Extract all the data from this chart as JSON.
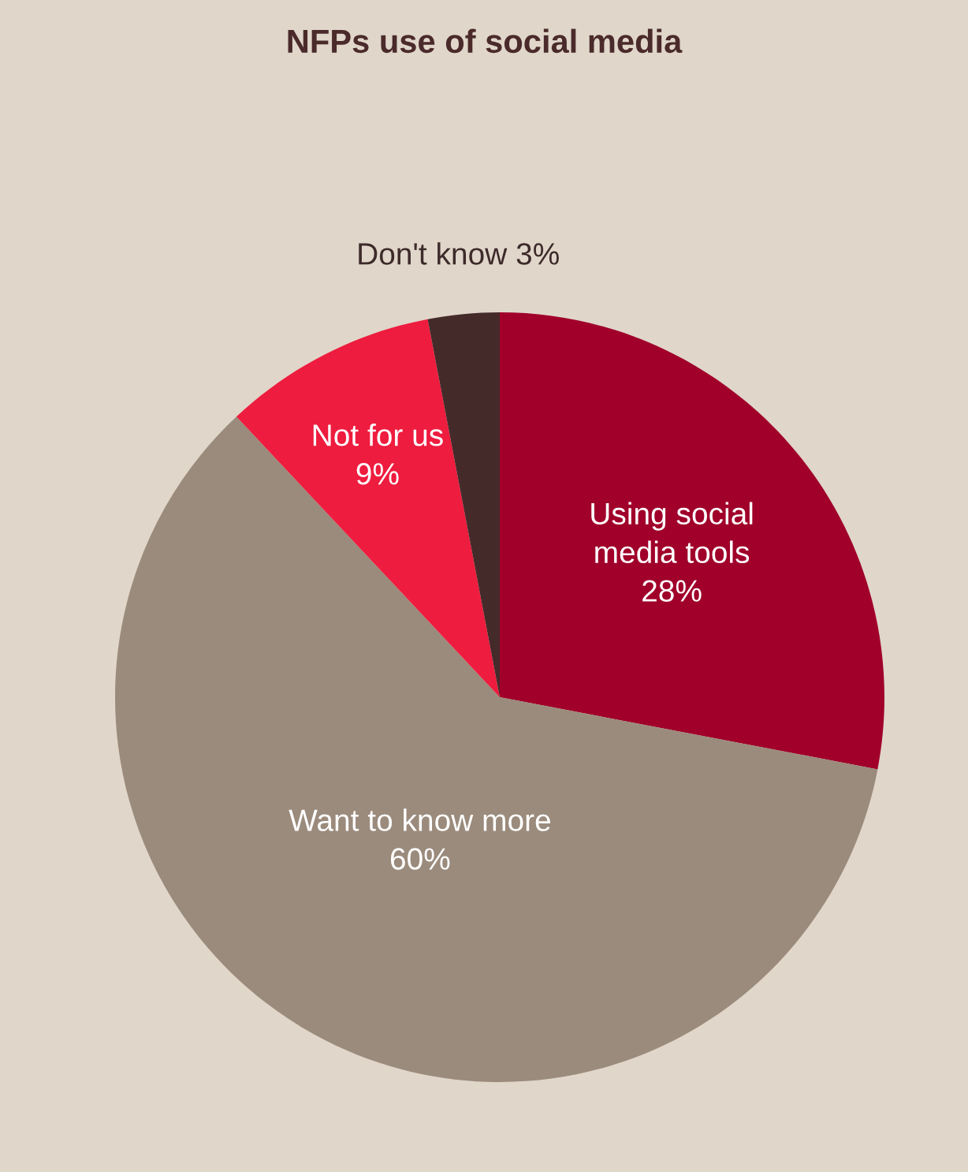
{
  "chart_data": {
    "type": "pie",
    "title": "NFPs use of social media",
    "categories": [
      "Using social\nmedia tools",
      "Want to know more",
      "Not for us",
      "Don't know"
    ],
    "values": [
      28,
      60,
      9,
      3
    ],
    "value_labels": [
      "28%",
      "60%",
      "9%",
      "3%"
    ],
    "colors": [
      "#a0002a",
      "#9b8b7c",
      "#ee1c3e",
      "#452a2a"
    ]
  }
}
